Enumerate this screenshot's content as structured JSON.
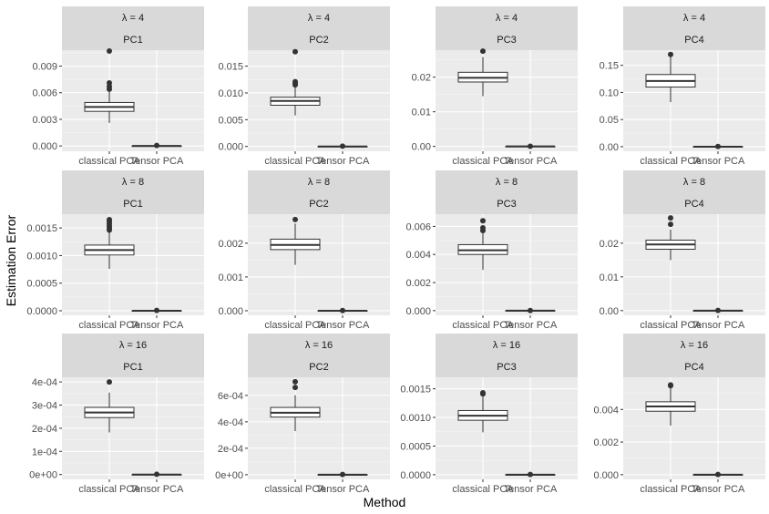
{
  "chart_data": {
    "type": "boxplot",
    "xlabel": "Method",
    "ylabel": "Estimation Error",
    "categories": [
      "classical PCA",
      "Tensor PCA"
    ],
    "colors": {
      "panel_bg": "#ebebeb",
      "strip_bg": "#d9d9d9",
      "grid_major": "#ffffff",
      "box_fill": "#ffffff",
      "box_line": "#333333",
      "text": "#1a1a1a",
      "tick_label": "#4d4d4d"
    },
    "panels": [
      {
        "lambda_label": "λ = 4",
        "pc": "PC1",
        "ylim": [
          -0.0006,
          0.0108
        ],
        "ticks": [
          0,
          0.003,
          0.006,
          0.009
        ],
        "tick_labels": [
          "0.000",
          "0.003",
          "0.006",
          "0.009"
        ],
        "boxes": [
          {
            "category": "classical PCA",
            "lower": 0.0026,
            "q1": 0.0039,
            "median": 0.0044,
            "q3": 0.0049,
            "upper": 0.0063,
            "outliers": [
              0.0064,
              0.0067,
              0.0071,
              0.0107
            ]
          },
          {
            "category": "Tensor PCA",
            "lower": 0,
            "q1": 0,
            "median": 0,
            "q3": 0,
            "upper": 0,
            "outliers": [
              5e-05
            ]
          }
        ]
      },
      {
        "lambda_label": "λ = 4",
        "pc": "PC2",
        "ylim": [
          -0.0009,
          0.018
        ],
        "ticks": [
          0,
          0.005,
          0.01,
          0.015
        ],
        "tick_labels": [
          "0.000",
          "0.005",
          "0.010",
          "0.015"
        ],
        "boxes": [
          {
            "category": "classical PCA",
            "lower": 0.0058,
            "q1": 0.0077,
            "median": 0.0085,
            "q3": 0.0092,
            "upper": 0.0112,
            "outliers": [
              0.0115,
              0.0118,
              0.0121,
              0.0177
            ]
          },
          {
            "category": "Tensor PCA",
            "lower": 0,
            "q1": 0,
            "median": 0,
            "q3": 0,
            "upper": 0,
            "outliers": [
              5e-05
            ]
          }
        ]
      },
      {
        "lambda_label": "λ = 4",
        "pc": "PC3",
        "ylim": [
          -0.0014,
          0.0278
        ],
        "ticks": [
          0,
          0.01,
          0.02
        ],
        "tick_labels": [
          "0.00",
          "0.01",
          "0.02"
        ],
        "boxes": [
          {
            "category": "classical PCA",
            "lower": 0.0145,
            "q1": 0.0186,
            "median": 0.0198,
            "q3": 0.0214,
            "upper": 0.0258,
            "outliers": [
              0.0275
            ]
          },
          {
            "category": "Tensor PCA",
            "lower": 0,
            "q1": 0,
            "median": 0,
            "q3": 0,
            "upper": 0,
            "outliers": [
              5e-05
            ]
          }
        ]
      },
      {
        "lambda_label": "λ = 4",
        "pc": "PC4",
        "ylim": [
          -0.0085,
          0.178
        ],
        "ticks": [
          0,
          0.05,
          0.1,
          0.15
        ],
        "tick_labels": [
          "0.00",
          "0.05",
          "0.10",
          "0.15"
        ],
        "boxes": [
          {
            "category": "classical PCA",
            "lower": 0.082,
            "q1": 0.11,
            "median": 0.121,
            "q3": 0.133,
            "upper": 0.166,
            "outliers": [
              0.17
            ]
          },
          {
            "category": "Tensor PCA",
            "lower": 0,
            "q1": 0,
            "median": 0,
            "q3": 0,
            "upper": 0,
            "outliers": [
              0.0003
            ]
          }
        ]
      },
      {
        "lambda_label": "λ = 8",
        "pc": "PC1",
        "ylim": [
          -8.33e-05,
          0.00175
        ],
        "ticks": [
          0,
          0.0005,
          0.001,
          0.0015
        ],
        "tick_labels": [
          "0.0000",
          "0.0005",
          "0.0010",
          "0.0015"
        ],
        "boxes": [
          {
            "category": "classical PCA",
            "lower": 0.00076,
            "q1": 0.00101,
            "median": 0.0011,
            "q3": 0.00119,
            "upper": 0.00143,
            "outliers": [
              0.00146,
              0.0015,
              0.00154,
              0.00158,
              0.00162,
              0.00165
            ]
          },
          {
            "category": "Tensor PCA",
            "lower": 0,
            "q1": 0,
            "median": 0,
            "q3": 0,
            "upper": 0,
            "outliers": [
              5e-06
            ]
          }
        ]
      },
      {
        "lambda_label": "λ = 8",
        "pc": "PC2",
        "ylim": [
          -0.000136,
          0.00286
        ],
        "ticks": [
          0,
          0.001,
          0.002
        ],
        "tick_labels": [
          "0.000",
          "0.001",
          "0.002"
        ],
        "boxes": [
          {
            "category": "classical PCA",
            "lower": 0.00136,
            "q1": 0.00181,
            "median": 0.00195,
            "q3": 0.00212,
            "upper": 0.00258,
            "outliers": [
              0.0027
            ]
          },
          {
            "category": "Tensor PCA",
            "lower": 0,
            "q1": 0,
            "median": 0,
            "q3": 0,
            "upper": 0,
            "outliers": [
              5e-06
            ]
          }
        ]
      },
      {
        "lambda_label": "λ = 8",
        "pc": "PC3",
        "ylim": [
          -0.000333,
          0.00687
        ],
        "ticks": [
          0,
          0.002,
          0.004,
          0.006
        ],
        "tick_labels": [
          "0.000",
          "0.002",
          "0.004",
          "0.006"
        ],
        "boxes": [
          {
            "category": "classical PCA",
            "lower": 0.0029,
            "q1": 0.004,
            "median": 0.0043,
            "q3": 0.0047,
            "upper": 0.0055,
            "outliers": [
              0.0057,
              0.0059,
              0.0064
            ]
          },
          {
            "category": "Tensor PCA",
            "lower": 0,
            "q1": 0,
            "median": 0,
            "q3": 0,
            "upper": 0,
            "outliers": [
              1e-05
            ]
          }
        ]
      },
      {
        "lambda_label": "λ = 8",
        "pc": "PC4",
        "ylim": [
          -0.0014,
          0.0286
        ],
        "ticks": [
          0,
          0.01,
          0.02
        ],
        "tick_labels": [
          "0.00",
          "0.01",
          "0.02"
        ],
        "boxes": [
          {
            "category": "classical PCA",
            "lower": 0.015,
            "q1": 0.0182,
            "median": 0.0196,
            "q3": 0.0209,
            "upper": 0.024,
            "outliers": [
              0.0256,
              0.0275
            ]
          },
          {
            "category": "Tensor PCA",
            "lower": 0,
            "q1": 0,
            "median": 0,
            "q3": 0,
            "upper": 0,
            "outliers": [
              5e-05
            ]
          }
        ]
      },
      {
        "lambda_label": "λ = 16",
        "pc": "PC1",
        "ylim": [
          -2.09e-05,
          0.00042
        ],
        "ticks": [
          0,
          0.0001,
          0.0002,
          0.0003,
          0.0004
        ],
        "tick_labels": [
          "0e+00",
          "1e-04",
          "2e-04",
          "3e-04",
          "4e-04"
        ],
        "boxes": [
          {
            "category": "classical PCA",
            "lower": 0.000182,
            "q1": 0.000246,
            "median": 0.000268,
            "q3": 0.00029,
            "upper": 0.000354,
            "outliers": [
              0.0004
            ]
          },
          {
            "category": "Tensor PCA",
            "lower": 0,
            "q1": 0,
            "median": 0,
            "q3": 0,
            "upper": 0,
            "outliers": [
              1e-06
            ]
          }
        ]
      },
      {
        "lambda_label": "λ = 16",
        "pc": "PC2",
        "ylim": [
          -3.53e-05,
          0.000737
        ],
        "ticks": [
          0,
          0.0002,
          0.0004,
          0.0006
        ],
        "tick_labels": [
          "0e+00",
          "2e-04",
          "4e-04",
          "6e-04"
        ],
        "boxes": [
          {
            "category": "classical PCA",
            "lower": 0.00033,
            "q1": 0.000436,
            "median": 0.000469,
            "q3": 0.000509,
            "upper": 0.000602,
            "outliers": [
              0.00066,
              0.000703
            ]
          },
          {
            "category": "Tensor PCA",
            "lower": 0,
            "q1": 0,
            "median": 0,
            "q3": 0,
            "upper": 0,
            "outliers": [
              2e-06
            ]
          }
        ]
      },
      {
        "lambda_label": "λ = 16",
        "pc": "PC3",
        "ylim": [
          -8.15e-05,
          0.0017
        ],
        "ticks": [
          0,
          0.0005,
          0.001,
          0.0015
        ],
        "tick_labels": [
          "0.0000",
          "0.0005",
          "0.0010",
          "0.0015"
        ],
        "boxes": [
          {
            "category": "classical PCA",
            "lower": 0.00074,
            "q1": 0.00095,
            "median": 0.00103,
            "q3": 0.00112,
            "upper": 0.00136,
            "outliers": [
              0.00141,
              0.00143
            ]
          },
          {
            "category": "Tensor PCA",
            "lower": 0,
            "q1": 0,
            "median": 0,
            "q3": 0,
            "upper": 0,
            "outliers": [
              4e-06
            ]
          }
        ]
      },
      {
        "lambda_label": "λ = 16",
        "pc": "PC4",
        "ylim": [
          -0.000287,
          0.00597
        ],
        "ticks": [
          0,
          0.002,
          0.004
        ],
        "tick_labels": [
          "0.000",
          "0.002",
          "0.004"
        ],
        "boxes": [
          {
            "category": "classical PCA",
            "lower": 0.00301,
            "q1": 0.00389,
            "median": 0.00418,
            "q3": 0.00447,
            "upper": 0.00535,
            "outliers": [
              0.00545,
              0.0055
            ]
          },
          {
            "category": "Tensor PCA",
            "lower": 0,
            "q1": 0,
            "median": 0,
            "q3": 0,
            "upper": 0,
            "outliers": [
              1.5e-05
            ]
          }
        ]
      }
    ]
  }
}
